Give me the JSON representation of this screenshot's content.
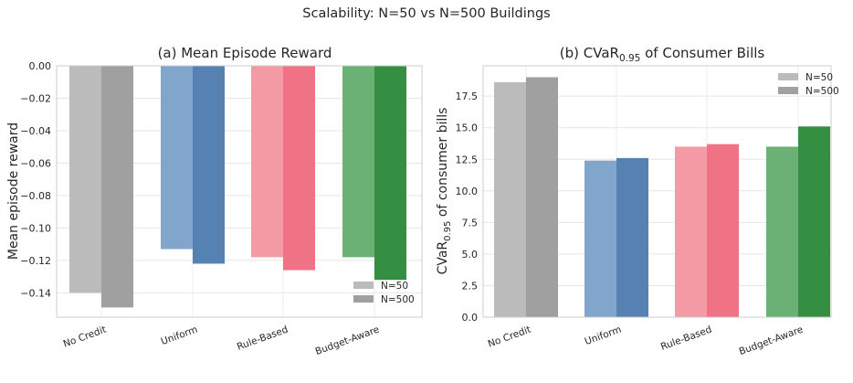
{
  "suptitle": "Scalability: N=50 vs N=500 Buildings",
  "legend": {
    "n50": "N=50",
    "n500": "N=500"
  },
  "chart_data": [
    {
      "type": "bar",
      "title": "(a) Mean Episode Reward",
      "ylabel": "Mean episode reward",
      "categories": [
        "No Credit",
        "Uniform",
        "Rule-Based",
        "Budget-Aware"
      ],
      "series": [
        {
          "name": "N=50",
          "values": [
            -0.14,
            -0.113,
            -0.118,
            -0.118
          ]
        },
        {
          "name": "N=500",
          "values": [
            -0.149,
            -0.122,
            -0.126,
            -0.132
          ]
        }
      ],
      "ylim": [
        -0.155,
        0.0
      ],
      "yticks": [
        0.0,
        -0.02,
        -0.04,
        -0.06,
        -0.08,
        -0.1,
        -0.12,
        -0.14
      ],
      "ytick_labels": [
        "0.00",
        "−0.02",
        "−0.04",
        "−0.06",
        "−0.08",
        "−0.10",
        "−0.12",
        "−0.14"
      ],
      "grid": true,
      "legend_position": "lower-right"
    },
    {
      "type": "bar",
      "title_main": "(b) CVaR",
      "title_sub": "0.95",
      "title_tail": " of Consumer Bills",
      "ylabel_main": "CVaR",
      "ylabel_sub": "0.95",
      "ylabel_tail": " of consumer bills",
      "categories": [
        "No Credit",
        "Uniform",
        "Rule-Based",
        "Budget-Aware"
      ],
      "series": [
        {
          "name": "N=50",
          "values": [
            18.6,
            12.4,
            13.5,
            13.5
          ]
        },
        {
          "name": "N=500",
          "values": [
            19.0,
            12.6,
            13.7,
            15.1
          ]
        }
      ],
      "ylim": [
        0,
        19.9
      ],
      "yticks": [
        0.0,
        2.5,
        5.0,
        7.5,
        10.0,
        12.5,
        15.0,
        17.5
      ],
      "ytick_labels": [
        "0.0",
        "2.5",
        "5.0",
        "7.5",
        "10.0",
        "12.5",
        "15.0",
        "17.5"
      ],
      "grid": true,
      "legend_position": "upper-right"
    }
  ],
  "colors": {
    "No Credit": [
      "#bbbbbb",
      "#a0a0a0"
    ],
    "Uniform": [
      "#82a5cc",
      "#5581b3"
    ],
    "Rule-Based": [
      "#f39aa5",
      "#ef7384"
    ],
    "Budget-Aware": [
      "#6bb176",
      "#358f42"
    ],
    "legend": [
      "#bbbbbb",
      "#a0a0a0"
    ]
  }
}
